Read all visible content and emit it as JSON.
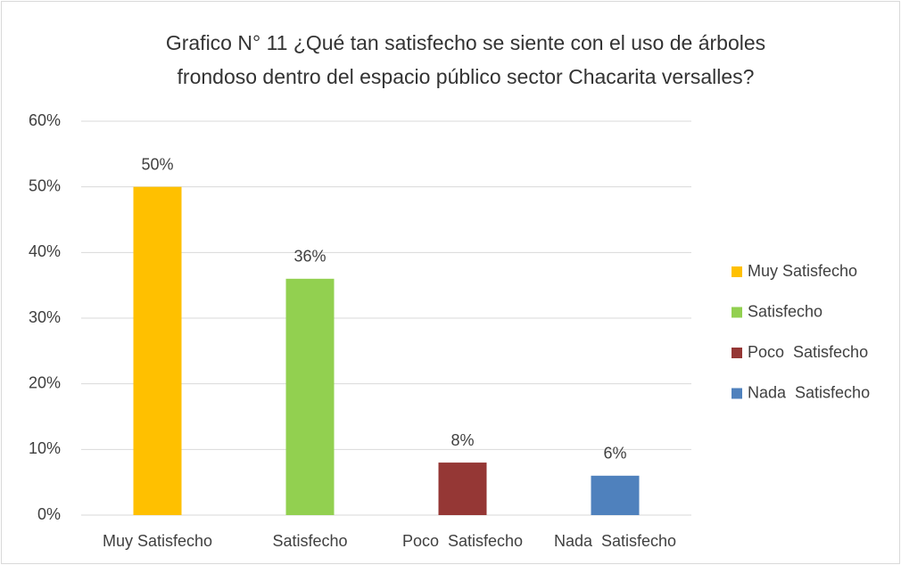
{
  "chart_data": {
    "type": "bar",
    "title": [
      "Grafico N° 11 ¿Qué tan satisfecho se siente con el uso de árboles",
      "frondoso dentro del espacio público sector Chacarita versalles?"
    ],
    "categories": [
      "Muy Satisfecho",
      "Satisfecho",
      "Poco  Satisfecho",
      "Nada  Satisfecho"
    ],
    "values": [
      50,
      36,
      8,
      6
    ],
    "value_labels": [
      "50%",
      "36%",
      "8%",
      "6%"
    ],
    "colors": [
      "#ffc000",
      "#92d050",
      "#953735",
      "#4f81bd"
    ],
    "ylim": [
      0,
      60
    ],
    "yticks": [
      {
        "value": 0,
        "label": "0%"
      },
      {
        "value": 10,
        "label": "10%"
      },
      {
        "value": 20,
        "label": "20%"
      },
      {
        "value": 30,
        "label": "30%"
      },
      {
        "value": 40,
        "label": "40%"
      },
      {
        "value": 50,
        "label": "50%"
      },
      {
        "value": 60,
        "label": "60%"
      }
    ],
    "grid": true,
    "legend": "right"
  }
}
